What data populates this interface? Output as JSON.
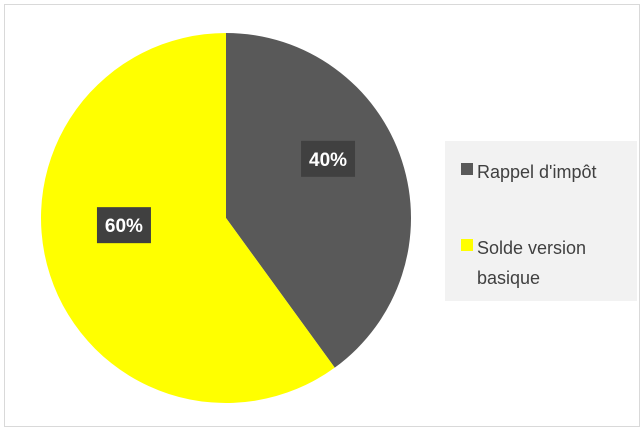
{
  "chart_data": {
    "type": "pie",
    "title": "",
    "categories": [
      "Rappel d'impôt",
      "Solde version basique"
    ],
    "values": [
      40,
      60
    ],
    "data_labels": [
      "40%",
      "60%"
    ],
    "colors": [
      "#595959",
      "#ffff00"
    ],
    "legend_position": "right"
  }
}
